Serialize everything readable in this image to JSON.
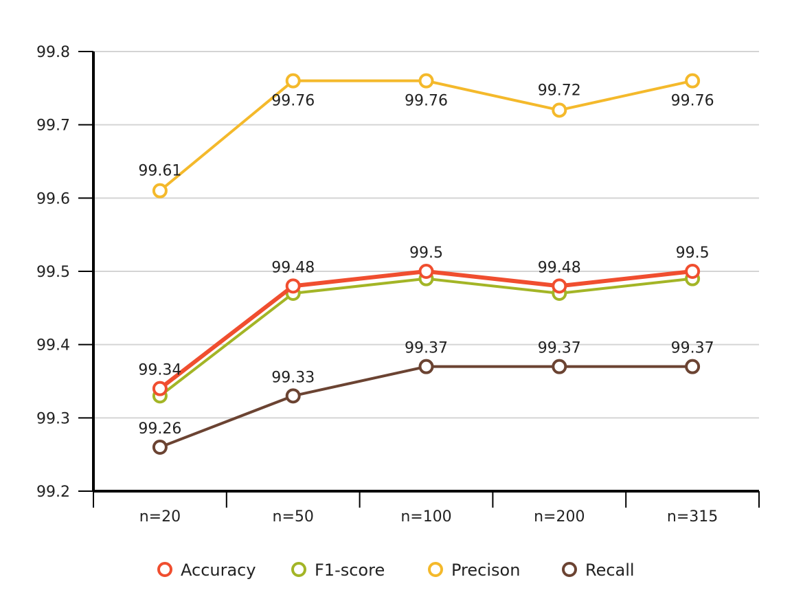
{
  "chart_data": {
    "type": "line",
    "categories": [
      "n=20",
      "n=50",
      "n=100",
      "n=200",
      "n=315"
    ],
    "ylim": [
      99.2,
      99.8
    ],
    "yticks": [
      "99.2",
      "99.3",
      "99.4",
      "99.5",
      "99.6",
      "99.7",
      "99.8"
    ],
    "grid": true,
    "legend_position": "bottom",
    "series": [
      {
        "name": "Accuracy",
        "color": "#f04e2f",
        "values": [
          99.34,
          99.48,
          99.5,
          99.48,
          99.5
        ],
        "labels": [
          "99.34",
          "99.48",
          "99.5",
          "99.48",
          "99.5"
        ],
        "show_labels": [
          true,
          true,
          true,
          true,
          true
        ]
      },
      {
        "name": "F1-score",
        "color": "#a3b526",
        "values": [
          99.33,
          99.47,
          99.49,
          99.47,
          99.49
        ],
        "labels": [
          "",
          "",
          "",
          "",
          ""
        ],
        "show_labels": [
          false,
          false,
          false,
          false,
          false
        ]
      },
      {
        "name": "Precison",
        "color": "#f4b92b",
        "values": [
          99.61,
          99.76,
          99.76,
          99.72,
          99.76
        ],
        "labels": [
          "99.61",
          "99.76",
          "99.76",
          "99.72",
          "99.76"
        ],
        "show_labels": [
          true,
          true,
          true,
          true,
          true
        ]
      },
      {
        "name": "Recall",
        "color": "#6b4332",
        "values": [
          99.26,
          99.33,
          99.37,
          99.37,
          99.37
        ],
        "labels": [
          "99.26",
          "99.33",
          "99.37",
          "99.37",
          "99.37"
        ],
        "show_labels": [
          true,
          true,
          true,
          true,
          true
        ]
      }
    ]
  }
}
